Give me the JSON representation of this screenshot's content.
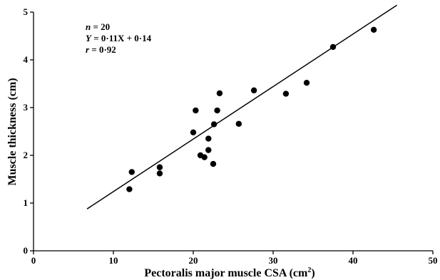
{
  "chart_data": {
    "type": "scatter",
    "title": "",
    "xlabel": "Pectoralis major muscle CSA (cm",
    "xlabel_sup": "2",
    "xlabel_tail": ")",
    "ylabel": "Muscle thickness (cm)",
    "xlim": [
      0,
      50
    ],
    "ylim": [
      0,
      5
    ],
    "xticks": [
      "0",
      "10",
      "20",
      "30",
      "40",
      "50"
    ],
    "yticks": [
      "0",
      "1",
      "2",
      "3",
      "4",
      "5"
    ],
    "grid": false,
    "annotations": {
      "n_var": "n",
      "n_val": " = 20",
      "y_var": "Y",
      "y_val": " = 0·11X + 0·14",
      "r_var": "r",
      "r_val": " = 0·92"
    },
    "points": [
      {
        "x": 12.0,
        "y": 1.29
      },
      {
        "x": 12.3,
        "y": 1.65
      },
      {
        "x": 15.8,
        "y": 1.75
      },
      {
        "x": 15.8,
        "y": 1.62
      },
      {
        "x": 20.0,
        "y": 2.48
      },
      {
        "x": 20.3,
        "y": 2.94
      },
      {
        "x": 20.9,
        "y": 2.0
      },
      {
        "x": 21.4,
        "y": 1.96
      },
      {
        "x": 21.9,
        "y": 2.11
      },
      {
        "x": 21.9,
        "y": 2.35
      },
      {
        "x": 22.5,
        "y": 1.82
      },
      {
        "x": 22.6,
        "y": 2.65
      },
      {
        "x": 23.0,
        "y": 2.94
      },
      {
        "x": 23.3,
        "y": 3.3
      },
      {
        "x": 25.7,
        "y": 2.66
      },
      {
        "x": 27.6,
        "y": 3.36
      },
      {
        "x": 31.6,
        "y": 3.29
      },
      {
        "x": 34.2,
        "y": 3.52
      },
      {
        "x": 37.5,
        "y": 4.27
      },
      {
        "x": 42.6,
        "y": 4.63
      }
    ],
    "regression": {
      "slope": 0.11,
      "intercept": 0.14,
      "x_start": 6.7,
      "x_end": 45.5
    }
  }
}
